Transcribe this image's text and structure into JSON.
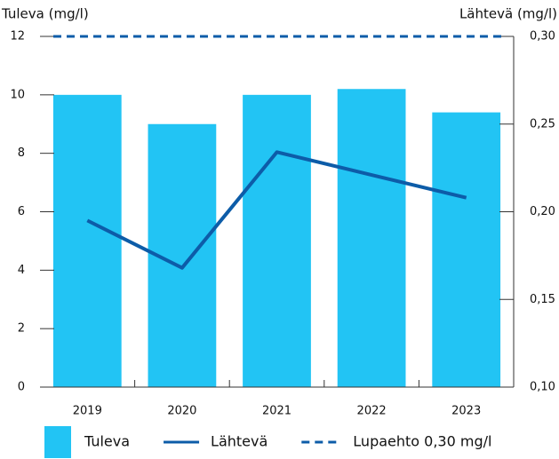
{
  "chart_data": {
    "type": "bar_line",
    "y_label": "Tuleva (mg/l)",
    "y2_label": "Lähtevä (mg/l)",
    "categories": [
      "2019",
      "2020",
      "2021",
      "2022",
      "2023"
    ],
    "series": [
      {
        "name": "Tuleva",
        "type": "bar",
        "color": "#22c4f4",
        "values": [
          10,
          9,
          10,
          10.2,
          9.4
        ]
      },
      {
        "name": "Lähtevä",
        "type": "line",
        "axis": "y2",
        "color": "#0d5ca8",
        "values": [
          0.195,
          0.168,
          0.234,
          0.221,
          0.208
        ]
      }
    ],
    "reference_lines": [
      {
        "name": "Lupaehto 0,30 mg/l",
        "axis": "y2",
        "value": 0.3,
        "color": "#0d5ca8",
        "dashed": true
      }
    ],
    "ylim": [
      0,
      12
    ],
    "yticks": [
      0,
      2,
      4,
      6,
      8,
      10,
      12
    ],
    "y2lim": [
      0.1,
      0.3
    ],
    "y2ticks": [
      {
        "value": 0.1,
        "label": "0,10"
      },
      {
        "value": 0.15,
        "label": "0,15"
      },
      {
        "value": 0.2,
        "label": "0,20"
      },
      {
        "value": 0.25,
        "label": "0,25"
      },
      {
        "value": 0.3,
        "label": "0,30"
      }
    ]
  }
}
